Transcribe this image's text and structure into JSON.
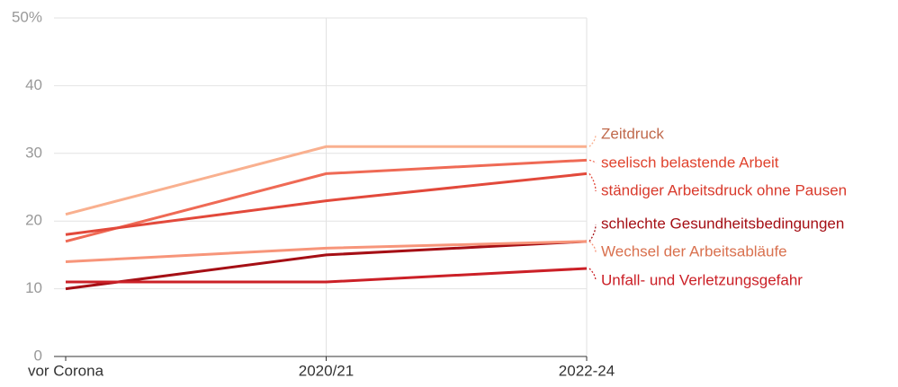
{
  "chart_data": {
    "type": "line",
    "categories": [
      "vor Corona",
      "2020/21",
      "2022-24"
    ],
    "ylim": [
      0,
      50
    ],
    "yticks": [
      0,
      10,
      20,
      30,
      40,
      {
        "value": 50,
        "label": "50%"
      }
    ],
    "grid": true,
    "series": [
      {
        "name": "Zeitdruck",
        "color": "#f9b08f",
        "label_color": "#c0694c",
        "values": [
          21,
          31,
          31
        ]
      },
      {
        "name": "seelisch belastende Arbeit",
        "color": "#ef6a55",
        "label_color": "#e0442f",
        "values": [
          17,
          27,
          29
        ]
      },
      {
        "name": "ständiger Arbeitsdruck ohne Pausen",
        "color": "#e2493b",
        "label_color": "#d93a2c",
        "values": [
          18,
          23,
          27
        ]
      },
      {
        "name": "schlechte Gesundheitsbedingungen",
        "color": "#a50f15",
        "label_color": "#a50f15",
        "values": [
          10,
          15,
          17
        ]
      },
      {
        "name": "Wechsel der Arbeitsabläufe",
        "color": "#f7957a",
        "label_color": "#d9714f",
        "values": [
          14,
          16,
          17
        ]
      },
      {
        "name": "Unfall- und Verletzungsgefahr",
        "color": "#cb2027",
        "label_color": "#cb2027",
        "values": [
          11,
          11,
          13
        ]
      }
    ]
  }
}
